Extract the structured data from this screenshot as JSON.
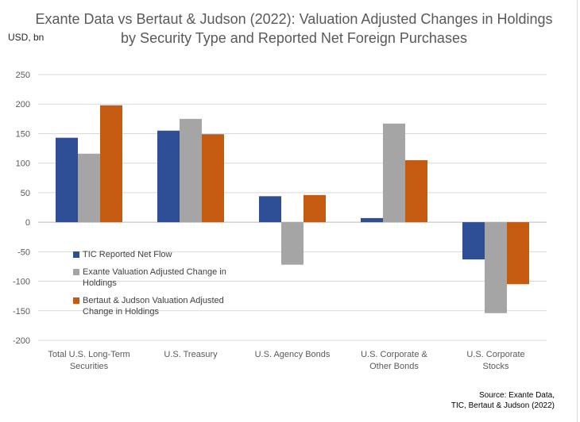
{
  "chart_data": {
    "type": "bar",
    "title": "Exante Data vs Bertaut & Judson (2022): Valuation Adjusted Changes in Holdings by Security Type and Reported Net Foreign Purchases",
    "ylabel": "USD, bn",
    "ylim": [
      -200,
      250
    ],
    "yticks": [
      250,
      200,
      150,
      100,
      50,
      0,
      -50,
      -100,
      -150,
      -200
    ],
    "grid": true,
    "legend_position": "left-middle",
    "categories": [
      "Total U.S. Long-Term Securities",
      "U.S. Treasury",
      "U.S. Agency Bonds",
      "U.S. Corporate & Other Bonds",
      "U.S. Corporate Stocks"
    ],
    "series": [
      {
        "name": "TIC Reported Net Flow",
        "color": "#2e4f96",
        "values": [
          143,
          155,
          44,
          7,
          -63
        ]
      },
      {
        "name": "Exante Valuation Adjusted Change in Holdings",
        "color": "#a5a5a5",
        "values": [
          116,
          175,
          -72,
          167,
          -154
        ]
      },
      {
        "name": "Bertaut & Judson Valuation Adjusted Change in Holdings",
        "color": "#c55a11",
        "values": [
          198,
          149,
          46,
          105,
          -105
        ]
      }
    ],
    "source": [
      "Source:  Exante Data,",
      "TIC, Bertaut & Judson  (2022)"
    ]
  }
}
